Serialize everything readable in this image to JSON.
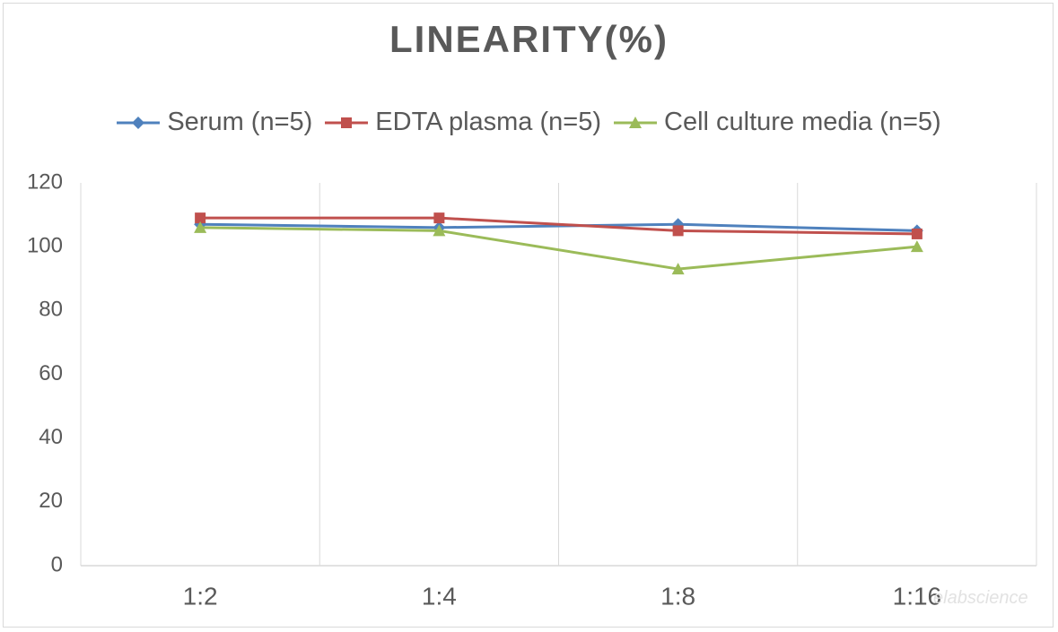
{
  "chart_data": {
    "type": "line",
    "title": "LINEARITY(%)",
    "categories": [
      "1:2",
      "1:4",
      "1:8",
      "1:16"
    ],
    "ylim": [
      0,
      120
    ],
    "yticks": [
      0,
      20,
      40,
      60,
      80,
      100,
      120
    ],
    "grid": "vertical",
    "legend_position": "top",
    "series": [
      {
        "name": "Serum (n=5)",
        "values": [
          107,
          106,
          107,
          105
        ],
        "color": "#4f81bd",
        "marker": "diamond"
      },
      {
        "name": "EDTA plasma (n=5)",
        "values": [
          109,
          109,
          105,
          104
        ],
        "color": "#c0504d",
        "marker": "square"
      },
      {
        "name": "Cell culture media (n=5)",
        "values": [
          106,
          105,
          93,
          100
        ],
        "color": "#9bbb59",
        "marker": "triangle"
      }
    ]
  },
  "watermark": "elabscience"
}
